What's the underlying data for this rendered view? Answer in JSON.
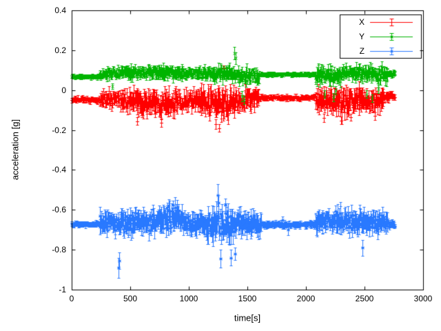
{
  "figure": {
    "background": "#ffffff",
    "axis_color": "#000000",
    "text_color": "#000000"
  },
  "chart_data": {
    "type": "scatter",
    "style": "points-with-error-bars",
    "title": "",
    "xlabel": "time[s]",
    "ylabel": "acceleration [g]",
    "xlim": [
      0,
      3000
    ],
    "ylim": [
      -1,
      0.4
    ],
    "xticks": [
      0,
      500,
      1000,
      1500,
      2000,
      2500,
      3000
    ],
    "yticks": [
      -1,
      -0.8,
      -0.6,
      -0.4,
      -0.2,
      0,
      0.2,
      0.4
    ],
    "grid": false,
    "legend_position": "top-right-inside-box",
    "sample_interval_s": 4,
    "time_range_s": [
      0,
      2760
    ],
    "series": [
      {
        "name": "X",
        "color": "#ff0000",
        "marker": "plus",
        "segments": [
          [
            0,
            240,
            -0.048,
            0.013
          ],
          [
            240,
            420,
            -0.047,
            0.034
          ],
          [
            420,
            560,
            -0.052,
            0.046
          ],
          [
            560,
            760,
            -0.062,
            0.052
          ],
          [
            760,
            900,
            -0.058,
            0.056
          ],
          [
            900,
            1100,
            -0.05,
            0.042
          ],
          [
            1100,
            1230,
            -0.065,
            0.055
          ],
          [
            1230,
            1360,
            -0.07,
            0.062
          ],
          [
            1360,
            1480,
            -0.058,
            0.05
          ],
          [
            1480,
            1600,
            -0.04,
            0.042
          ],
          [
            1600,
            2080,
            -0.038,
            0.011
          ],
          [
            2080,
            2250,
            -0.052,
            0.05
          ],
          [
            2250,
            2460,
            -0.06,
            0.056
          ],
          [
            2460,
            2660,
            -0.052,
            0.048
          ],
          [
            2660,
            2760,
            -0.032,
            0.02
          ]
        ],
        "outliers": [
          [
            560,
            -0.155,
            0.018
          ],
          [
            762,
            -0.165,
            0.02
          ],
          [
            1230,
            -0.17,
            0.025
          ],
          [
            1258,
            -0.19,
            0.02
          ],
          [
            1300,
            0.11,
            0.012
          ],
          [
            2150,
            -0.14,
            0.02
          ],
          [
            2300,
            -0.152,
            0.02
          ],
          [
            2385,
            -0.135,
            0.018
          ],
          [
            2590,
            -0.13,
            0.02
          ]
        ]
      },
      {
        "name": "Y",
        "color": "#00b400",
        "marker": "cross",
        "segments": [
          [
            0,
            240,
            0.068,
            0.009
          ],
          [
            240,
            420,
            0.085,
            0.022
          ],
          [
            420,
            700,
            0.09,
            0.026
          ],
          [
            700,
            950,
            0.088,
            0.028
          ],
          [
            950,
            1200,
            0.085,
            0.025
          ],
          [
            1200,
            1430,
            0.08,
            0.032
          ],
          [
            1430,
            1600,
            0.07,
            0.035
          ],
          [
            1600,
            2080,
            0.079,
            0.008
          ],
          [
            2080,
            2300,
            0.075,
            0.035
          ],
          [
            2300,
            2500,
            0.085,
            0.03
          ],
          [
            2500,
            2700,
            0.08,
            0.033
          ],
          [
            2700,
            2760,
            0.085,
            0.015
          ]
        ],
        "outliers": [
          [
            348,
            0.02,
            0.015
          ],
          [
            1390,
            0.185,
            0.032
          ],
          [
            1398,
            0.16,
            0.03
          ],
          [
            1455,
            -0.03,
            0.025
          ],
          [
            1472,
            -0.05,
            0.02
          ],
          [
            2160,
            -0.02,
            0.02
          ],
          [
            2235,
            -0.035,
            0.02
          ],
          [
            2255,
            0.0,
            0.02
          ],
          [
            2520,
            -0.02,
            0.02
          ],
          [
            2565,
            -0.04,
            0.02
          ],
          [
            2620,
            0.005,
            0.02
          ]
        ]
      },
      {
        "name": "Z",
        "color": "#2979ff",
        "marker": "star",
        "segments": [
          [
            0,
            240,
            -0.672,
            0.011
          ],
          [
            240,
            420,
            -0.668,
            0.042
          ],
          [
            420,
            700,
            -0.664,
            0.05
          ],
          [
            700,
            950,
            -0.645,
            0.056
          ],
          [
            950,
            1150,
            -0.668,
            0.046
          ],
          [
            1150,
            1400,
            -0.678,
            0.068
          ],
          [
            1400,
            1620,
            -0.668,
            0.05
          ],
          [
            1620,
            2080,
            -0.674,
            0.013
          ],
          [
            2080,
            2300,
            -0.652,
            0.052
          ],
          [
            2300,
            2520,
            -0.66,
            0.05
          ],
          [
            2520,
            2700,
            -0.664,
            0.046
          ],
          [
            2700,
            2760,
            -0.67,
            0.016
          ]
        ],
        "outliers": [
          [
            398,
            -0.89,
            0.05
          ],
          [
            406,
            -0.855,
            0.04
          ],
          [
            820,
            -0.585,
            0.02
          ],
          [
            862,
            -0.575,
            0.02
          ],
          [
            1248,
            -0.525,
            0.055
          ],
          [
            1254,
            -0.565,
            0.04
          ],
          [
            1268,
            -0.845,
            0.045
          ],
          [
            1310,
            -0.575,
            0.03
          ],
          [
            1360,
            -0.84,
            0.04
          ],
          [
            1392,
            -0.82,
            0.03
          ],
          [
            1800,
            -0.652,
            0.02
          ],
          [
            1846,
            -0.7,
            0.026
          ],
          [
            2480,
            -0.79,
            0.04
          ]
        ]
      }
    ]
  }
}
